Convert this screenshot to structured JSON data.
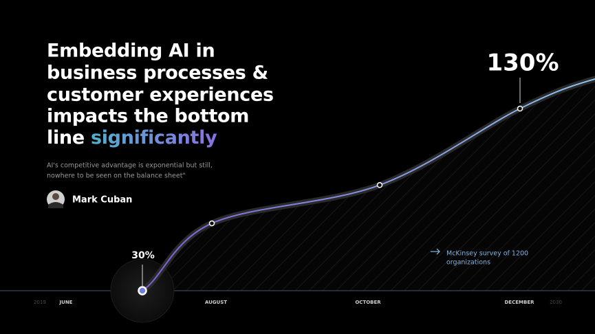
{
  "headline": [
    "Embedding AI in",
    "business processes &",
    "customer experiences",
    "impacts the bottom",
    "line"
  ],
  "headline_highlight": "significantly",
  "quote": [
    "AI's competitive advantage is exponential but still,",
    "nowhere to be seen on the balance sheet\""
  ],
  "author": "Mark Cuban",
  "chart_data": {
    "type": "line",
    "x_labels": [
      "2019",
      "JUNE",
      "AUGUST",
      "OCTOBER",
      "DECEMBER",
      "2030"
    ],
    "values": [
      30,
      67,
      88,
      130
    ],
    "value_labels": [
      "30%",
      null,
      null,
      "130%"
    ],
    "ylim": [
      30,
      130
    ],
    "colors": [
      "#7b5fd6",
      "#8fc4ee"
    ],
    "note": [
      "McKinsey survey of 1200",
      "organizations"
    ]
  }
}
